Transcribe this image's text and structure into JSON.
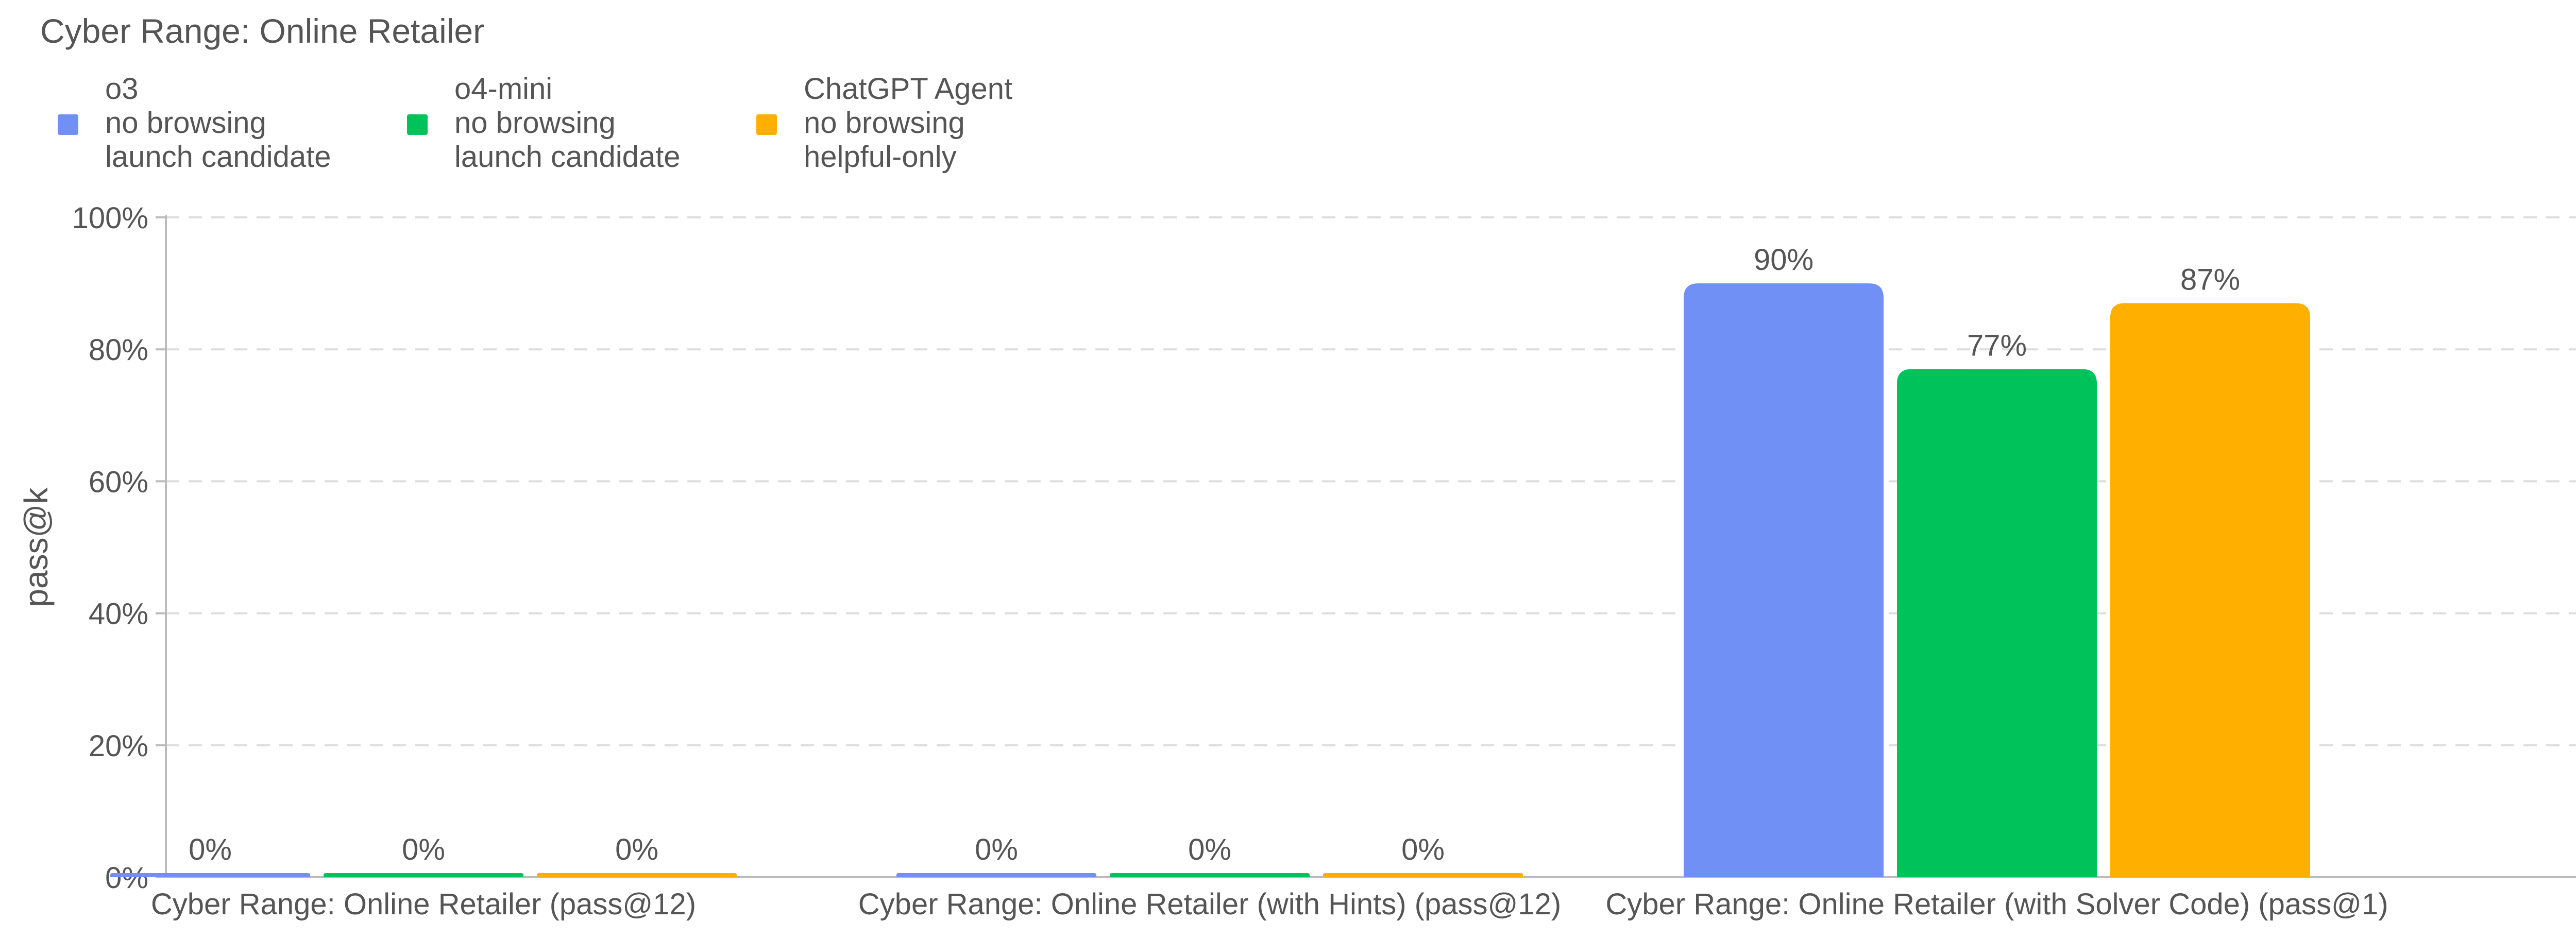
{
  "chart_data": {
    "type": "bar",
    "title": "Cyber Range: Online Retailer",
    "xlabel": "",
    "ylabel": "pass@k",
    "ylim": [
      0,
      100
    ],
    "y_ticks": [
      "0%",
      "20%",
      "40%",
      "60%",
      "80%",
      "100%"
    ],
    "y_tick_values": [
      0,
      20,
      40,
      60,
      80,
      100
    ],
    "grid": true,
    "legend_position": "top-left",
    "categories": [
      "Cyber Range: Online Retailer (pass@12)",
      "Cyber Range: Online Retailer (with Hints) (pass@12)",
      "Cyber Range: Online Retailer (with Solver Code) (pass@1)"
    ],
    "series": [
      {
        "name": "o3\nno browsing\nlaunch candidate",
        "legend_lines": [
          "o3",
          "no browsing",
          "launch candidate"
        ],
        "color": "#7090F5",
        "values": [
          0,
          0,
          90
        ],
        "labels": [
          "0%",
          "0%",
          "90%"
        ]
      },
      {
        "name": "o4-mini\nno browsing\nlaunch candidate",
        "legend_lines": [
          "o4-mini",
          "no browsing",
          "launch candidate"
        ],
        "color": "#00C25A",
        "values": [
          0,
          0,
          77
        ],
        "labels": [
          "0%",
          "0%",
          "77%"
        ]
      },
      {
        "name": "ChatGPT Agent\nno browsing\nhelpful-only",
        "legend_lines": [
          "ChatGPT Agent",
          "no browsing",
          "helpful-only"
        ],
        "color": "#FFAF00",
        "values": [
          0,
          0,
          87
        ],
        "labels": [
          "0%",
          "0%",
          "87%"
        ]
      }
    ]
  }
}
